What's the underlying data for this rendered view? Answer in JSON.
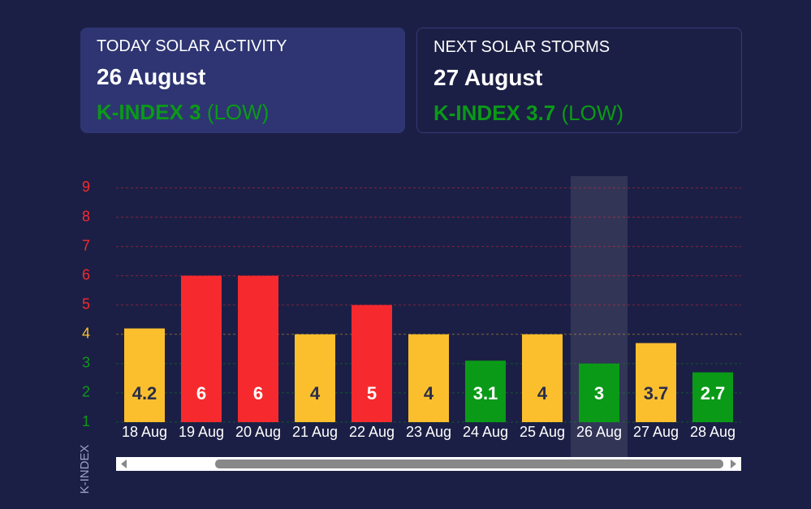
{
  "cards": [
    {
      "title": "TODAY SOLAR ACTIVITY",
      "date": "26 August",
      "index": "K-INDEX 3",
      "level": "(LOW)"
    },
    {
      "title": "NEXT SOLAR STORMS",
      "date": "27 August",
      "index": "K-INDEX 3.7",
      "level": "(LOW)"
    }
  ],
  "chart_data": {
    "type": "bar",
    "y_label": "K-INDEX",
    "categories": [
      "18 Aug",
      "19 Aug",
      "20 Aug",
      "21 Aug",
      "22 Aug",
      "23 Aug",
      "24 Aug",
      "25 Aug",
      "26 Aug",
      "27 Aug",
      "28 Aug"
    ],
    "values": [
      4.2,
      6,
      6,
      4,
      5,
      4,
      3.1,
      4,
      3,
      3.7,
      2.7
    ],
    "colors": [
      "#fbbf2e",
      "#f62a2e",
      "#f62a2e",
      "#fbbf2e",
      "#f62a2e",
      "#fbbf2e",
      "#0a9a17",
      "#fbbf2e",
      "#0a9a17",
      "#fbbf2e",
      "#0a9a17"
    ],
    "ylim": [
      1,
      9.4
    ],
    "yticks": [
      1,
      2,
      3,
      4,
      5,
      6,
      7,
      8,
      9
    ],
    "ytick_colors": [
      "#0a9a17",
      "#0a9a17",
      "#0a9a17",
      "#fbbf2e",
      "#f62a2e",
      "#f62a2e",
      "#f62a2e",
      "#f62a2e",
      "#f62a2e"
    ],
    "grid": true,
    "highlight": "26 Aug"
  }
}
